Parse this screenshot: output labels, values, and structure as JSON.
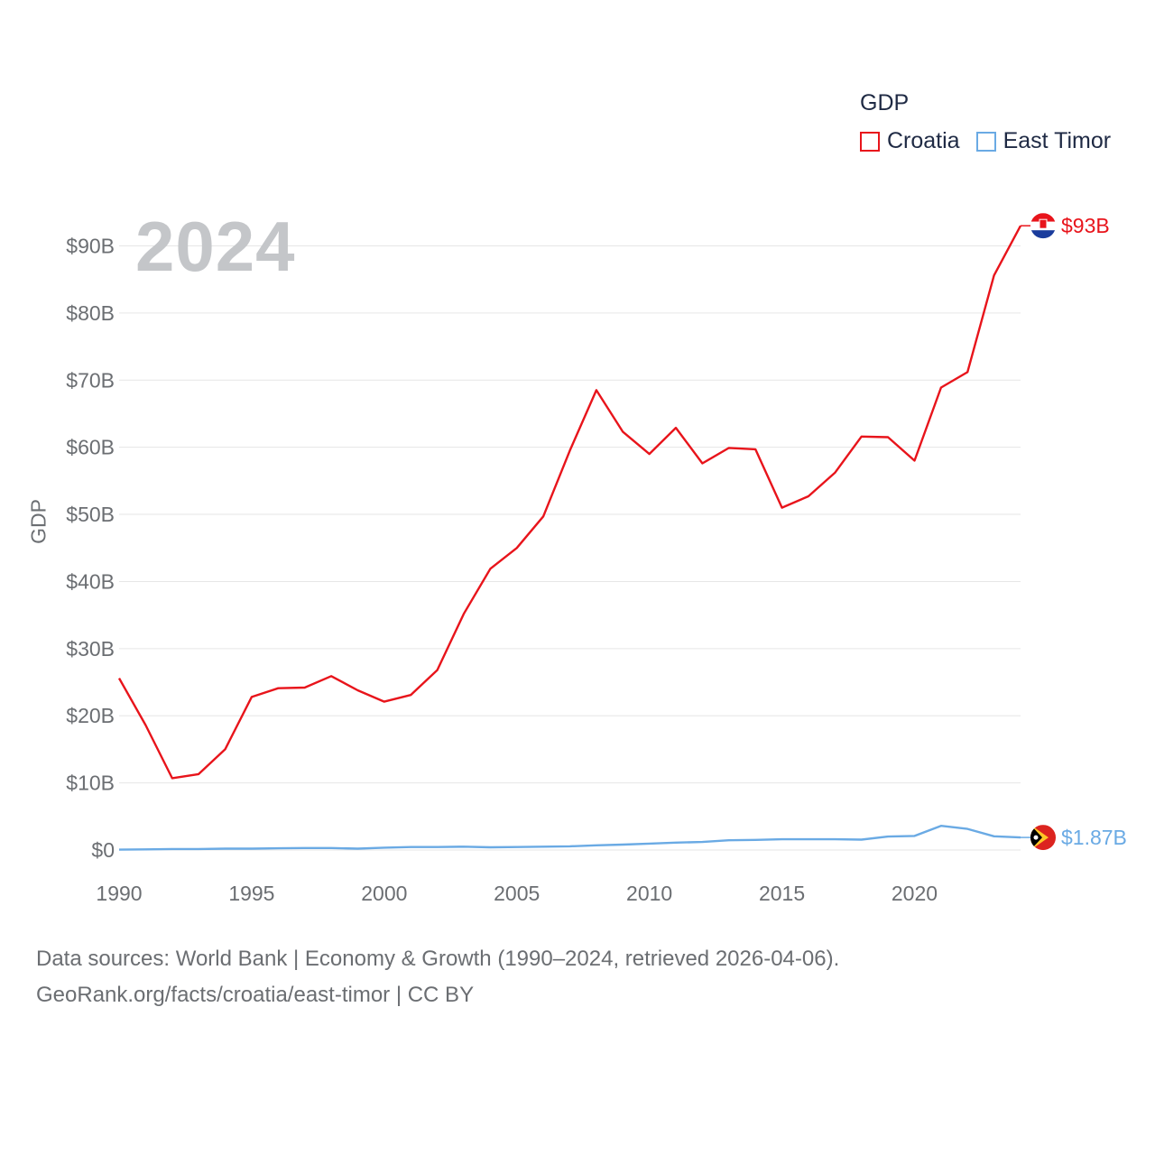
{
  "legend": {
    "title": "GDP",
    "items": [
      {
        "name": "Croatia",
        "color": "#e8141b"
      },
      {
        "name": "East Timor",
        "color": "#6aaae4"
      }
    ]
  },
  "current_year": "2024",
  "footer": {
    "line1": "Data sources: World Bank | Economy & Growth (1990–2024, retrieved 2026-04-06).",
    "line2": "GeoRank.org/facts/croatia/east-timor | CC BY"
  },
  "chart_data": {
    "type": "line",
    "title": "",
    "xlabel": "",
    "ylabel": "GDP",
    "xlim": [
      1990,
      2024
    ],
    "ylim": [
      0,
      90
    ],
    "unit": "billion USD",
    "x_ticks": [
      1990,
      1995,
      2000,
      2005,
      2010,
      2015,
      2020
    ],
    "y_ticks": [
      {
        "value": 0,
        "label": "$0"
      },
      {
        "value": 10,
        "label": "$10B"
      },
      {
        "value": 20,
        "label": "$20B"
      },
      {
        "value": 30,
        "label": "$30B"
      },
      {
        "value": 40,
        "label": "$40B"
      },
      {
        "value": 50,
        "label": "$50B"
      },
      {
        "value": 60,
        "label": "$60B"
      },
      {
        "value": 70,
        "label": "$70B"
      },
      {
        "value": 80,
        "label": "$80B"
      },
      {
        "value": 90,
        "label": "$90B"
      }
    ],
    "grid": true,
    "x": [
      1990,
      1991,
      1992,
      1993,
      1994,
      1995,
      1996,
      1997,
      1998,
      1999,
      2000,
      2001,
      2002,
      2003,
      2004,
      2005,
      2006,
      2007,
      2008,
      2009,
      2010,
      2011,
      2012,
      2013,
      2014,
      2015,
      2016,
      2017,
      2018,
      2019,
      2020,
      2021,
      2022,
      2023,
      2024
    ],
    "series": [
      {
        "name": "Croatia",
        "color": "#e8141b",
        "end_label": "$93B",
        "values": [
          25.6,
          18.6,
          10.7,
          11.3,
          15.0,
          22.8,
          24.1,
          24.2,
          25.9,
          23.8,
          22.1,
          23.1,
          26.8,
          35.2,
          41.9,
          45.0,
          49.7,
          59.5,
          68.5,
          62.3,
          59.0,
          62.9,
          57.6,
          59.9,
          59.7,
          51.0,
          52.7,
          56.2,
          61.6,
          61.5,
          58.0,
          68.9,
          71.2,
          85.6,
          93.0
        ]
      },
      {
        "name": "East Timor",
        "color": "#6aaae4",
        "end_label": "$1.87B",
        "values": [
          0.05,
          0.1,
          0.15,
          0.15,
          0.2,
          0.2,
          0.25,
          0.3,
          0.3,
          0.2,
          0.35,
          0.45,
          0.45,
          0.5,
          0.4,
          0.45,
          0.5,
          0.55,
          0.7,
          0.8,
          0.95,
          1.1,
          1.2,
          1.45,
          1.5,
          1.6,
          1.6,
          1.6,
          1.55,
          2.0,
          2.1,
          3.6,
          3.15,
          2.05,
          1.87
        ]
      }
    ]
  }
}
